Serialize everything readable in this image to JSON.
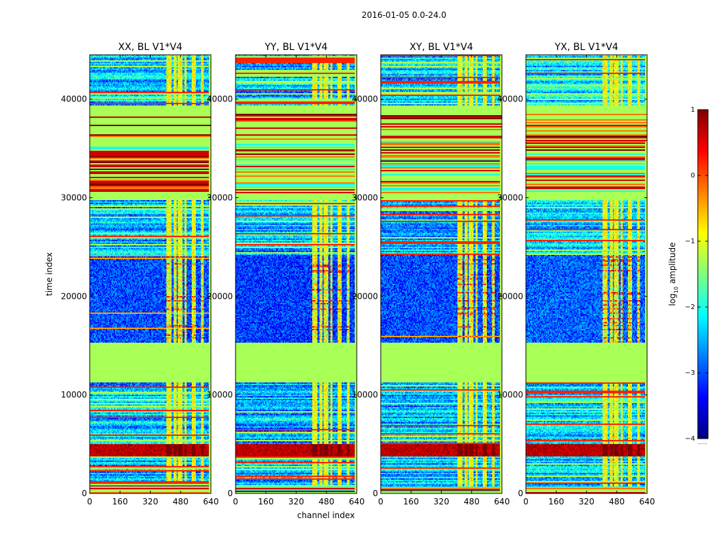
{
  "figure": {
    "suptitle": "2016-01-05 0.0-24.0",
    "xlabel": "channel index",
    "ylabel": "time index"
  },
  "colorbar": {
    "label_prefix": "log",
    "label_sub": "10",
    "label_suffix": " amplitude",
    "range": [
      -4,
      1
    ],
    "ticks": [
      1,
      0,
      -1,
      -2,
      -3,
      -4
    ],
    "tick_labels": [
      "1",
      "0",
      "−1",
      "−2",
      "−3",
      "−4"
    ],
    "colormap": "jet",
    "colors": [
      "#00007f",
      "#0000ff",
      "#007fff",
      "#00ffff",
      "#7fff7f",
      "#ffff00",
      "#ff7f00",
      "#ff0000",
      "#7f0000"
    ],
    "footer": "......"
  },
  "chart_data": {
    "type": "heatmap",
    "x_range": [
      0,
      640
    ],
    "y_range": [
      0,
      44500
    ],
    "x_ticks": [
      0,
      160,
      320,
      480,
      640
    ],
    "y_ticks": [
      0,
      10000,
      20000,
      30000,
      40000
    ],
    "y_tick_labels": [
      "0",
      "10000",
      "20000",
      "30000",
      "40000"
    ],
    "rfi_channel_bands": [
      [
        405,
        430
      ],
      [
        445,
        460
      ],
      [
        465,
        490
      ],
      [
        500,
        512
      ],
      [
        540,
        560
      ],
      [
        585,
        600
      ]
    ],
    "time_regions": [
      {
        "range": [
          0,
          700
        ],
        "level": -1.4,
        "pattern": "flagged-stripes"
      },
      {
        "range": [
          700,
          3800
        ],
        "level": -1.6,
        "pattern": "stripes"
      },
      {
        "range": [
          3800,
          5000
        ],
        "level": 0.8,
        "pattern": "strong-event"
      },
      {
        "range": [
          5000,
          11300
        ],
        "level": -1.8,
        "pattern": "stripes"
      },
      {
        "range": [
          11300,
          15300
        ],
        "level": -1.3,
        "pattern": "flagged"
      },
      {
        "range": [
          15300,
          24200
        ],
        "level": -3.0,
        "pattern": "noise"
      },
      {
        "range": [
          24200,
          29700
        ],
        "level": -2.4,
        "pattern": "stripes"
      },
      {
        "range": [
          29700,
          30500
        ],
        "level": -1.3,
        "pattern": "flagged"
      },
      {
        "range": [
          30500,
          35800
        ],
        "level": -1.2,
        "pattern": "flagged-stripes"
      },
      {
        "range": [
          35800,
          38500
        ],
        "level": -1.3,
        "pattern": "flagged-bright"
      },
      {
        "range": [
          38500,
          39300
        ],
        "level": -1.3,
        "pattern": "flagged"
      },
      {
        "range": [
          39300,
          44500
        ],
        "level": -2.6,
        "pattern": "stripes"
      }
    ],
    "panels": [
      {
        "title": "XX, BL V1*V4",
        "noise_level": -3.0
      },
      {
        "title": "YY, BL V1*V4",
        "noise_level": -3.1
      },
      {
        "title": "XY, BL V1*V4",
        "noise_level": -3.0
      },
      {
        "title": "YX, BL V1*V4",
        "noise_level": -2.9
      }
    ]
  }
}
